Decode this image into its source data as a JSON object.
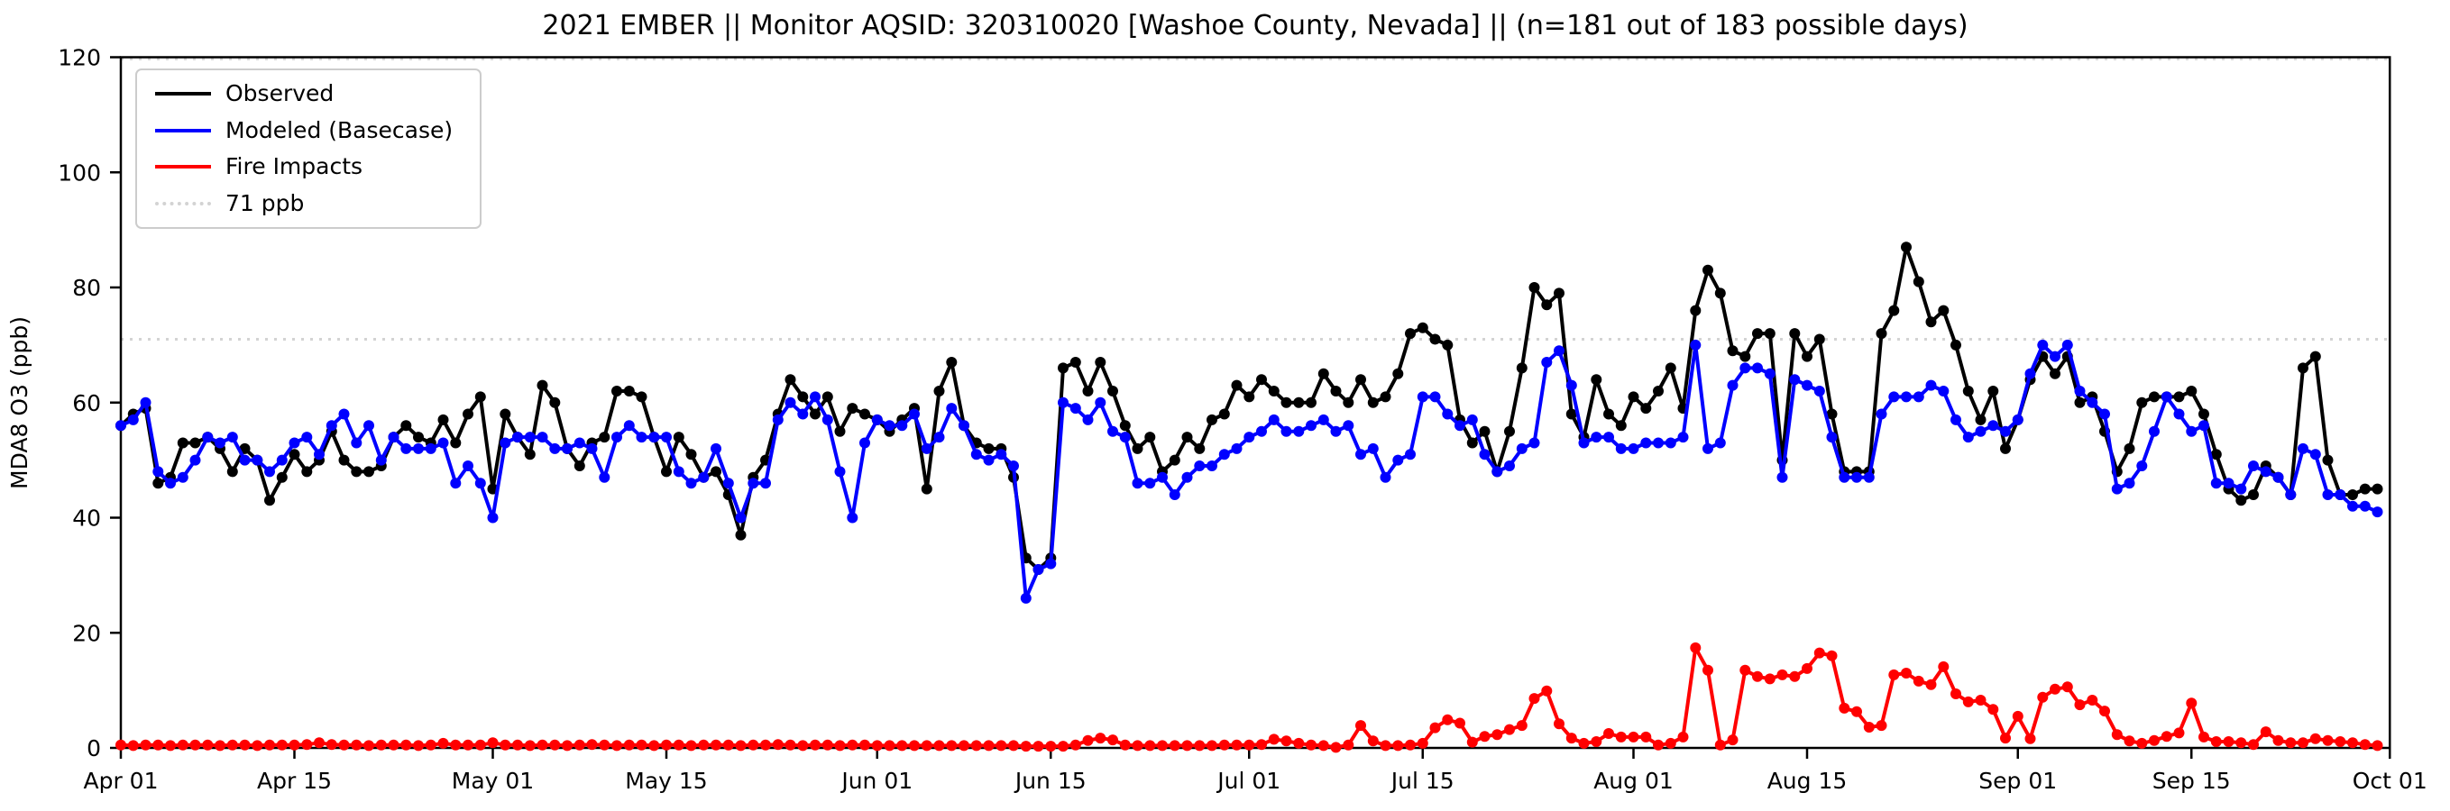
{
  "figure": {
    "title": "2021 EMBER || Monitor AQSID: 320310020 [Washoe County, Nevada] || (n=181 out of 183 possible days)"
  },
  "chart_data": {
    "type": "line",
    "title": "2021 EMBER || Monitor AQSID: 320310020 [Washoe County, Nevada] || (n=181 out of 183 possible days)",
    "xlabel": "",
    "ylabel": "MDA8 O3 (ppb)",
    "ylim": [
      0,
      120
    ],
    "yticks": [
      0,
      20,
      40,
      60,
      80,
      100,
      120
    ],
    "x_total_days": 183,
    "x_start": "Apr 01",
    "x_end": "Oct 01",
    "grid": false,
    "xticks": [
      {
        "label": "Apr 01",
        "day": 0
      },
      {
        "label": "Apr 15",
        "day": 14
      },
      {
        "label": "May 01",
        "day": 30
      },
      {
        "label": "May 15",
        "day": 44
      },
      {
        "label": "Jun 01",
        "day": 61
      },
      {
        "label": "Jun 15",
        "day": 75
      },
      {
        "label": "Jul 01",
        "day": 91
      },
      {
        "label": "Jul 15",
        "day": 105
      },
      {
        "label": "Aug 01",
        "day": 122
      },
      {
        "label": "Aug 15",
        "day": 136
      },
      {
        "label": "Sep 01",
        "day": 153
      },
      {
        "label": "Sep 15",
        "day": 167
      },
      {
        "label": "Oct 01",
        "day": 183
      }
    ],
    "ref_lines": [
      {
        "label": "71 ppb",
        "value": 71,
        "color": "#d3d3d3",
        "style": "dotted"
      },
      {
        "label": null,
        "value": 119.7,
        "color": "#d3d3d3",
        "style": "dotted"
      }
    ],
    "legend": {
      "position": "upper left",
      "entries": [
        "Observed",
        "Modeled (Basecase)",
        "Fire Impacts",
        "71 ppb"
      ]
    },
    "n_note": "n=181 out of 183 possible days",
    "series": [
      {
        "name": "Observed",
        "color": "#000000",
        "marker": "circle",
        "values": [
          56,
          58,
          59,
          46,
          47,
          53,
          53,
          54,
          52,
          48,
          52,
          50,
          43,
          47,
          51,
          48,
          50,
          55,
          50,
          48,
          48,
          49,
          54,
          56,
          54,
          53,
          57,
          53,
          58,
          61,
          45,
          58,
          54,
          51,
          63,
          60,
          52,
          49,
          53,
          54,
          62,
          62,
          61,
          54,
          48,
          54,
          51,
          47,
          48,
          44,
          37,
          47,
          50,
          58,
          64,
          61,
          58,
          61,
          55,
          59,
          58,
          57,
          55,
          57,
          59,
          45,
          62,
          67,
          56,
          53,
          52,
          52,
          47,
          33,
          31,
          33,
          66,
          67,
          62,
          67,
          62,
          56,
          52,
          54,
          48,
          50,
          54,
          52,
          57,
          58,
          63,
          61,
          64,
          62,
          60,
          60,
          60,
          65,
          62,
          60,
          64,
          60,
          61,
          65,
          72,
          73,
          71,
          70,
          57,
          53,
          55,
          48,
          55,
          66,
          80,
          77,
          79,
          58,
          54,
          64,
          58,
          56,
          61,
          59,
          62,
          66,
          59,
          76,
          83,
          79,
          69,
          68,
          72,
          72,
          50,
          72,
          68,
          71,
          58,
          48,
          48,
          48,
          72,
          76,
          87,
          81,
          74,
          76,
          70,
          62,
          57,
          62,
          52,
          57,
          64,
          68,
          65,
          68,
          60,
          61,
          55,
          48,
          52,
          60,
          61,
          61,
          61,
          62,
          58,
          51,
          45,
          43,
          44,
          49,
          47,
          44,
          66,
          68,
          50,
          44,
          44,
          45,
          45
        ]
      },
      {
        "name": "Modeled (Basecase)",
        "color": "#0000ff",
        "marker": "circle",
        "values": [
          56,
          57,
          60,
          48,
          46,
          47,
          50,
          54,
          53,
          54,
          50,
          50,
          48,
          50,
          53,
          54,
          51,
          56,
          58,
          53,
          56,
          50,
          54,
          52,
          52,
          52,
          53,
          46,
          49,
          46,
          40,
          53,
          54,
          54,
          54,
          52,
          52,
          53,
          52,
          47,
          54,
          56,
          54,
          54,
          54,
          48,
          46,
          47,
          52,
          46,
          40,
          46,
          46,
          57,
          60,
          58,
          61,
          57,
          48,
          40,
          53,
          57,
          56,
          56,
          58,
          52,
          54,
          59,
          56,
          51,
          50,
          51,
          49,
          26,
          31,
          32,
          60,
          59,
          57,
          60,
          55,
          54,
          46,
          46,
          47,
          44,
          47,
          49,
          49,
          51,
          52,
          54,
          55,
          57,
          55,
          55,
          56,
          57,
          55,
          56,
          51,
          52,
          47,
          50,
          51,
          61,
          61,
          58,
          56,
          57,
          51,
          48,
          49,
          52,
          53,
          67,
          69,
          63,
          53,
          54,
          54,
          52,
          52,
          53,
          53,
          53,
          54,
          70,
          52,
          53,
          63,
          66,
          66,
          65,
          47,
          64,
          63,
          62,
          54,
          47,
          47,
          47,
          58,
          61,
          61,
          61,
          63,
          62,
          57,
          54,
          55,
          56,
          55,
          57,
          65,
          70,
          68,
          70,
          62,
          60,
          58,
          45,
          46,
          49,
          55,
          61,
          58,
          55,
          56,
          46,
          46,
          45,
          49,
          48,
          47,
          44,
          52,
          51,
          44,
          44,
          42,
          42,
          41
        ]
      },
      {
        "name": "Fire Impacts",
        "color": "#ff0000",
        "marker": "circle",
        "values": [
          0.5,
          0.4,
          0.5,
          0.5,
          0.4,
          0.5,
          0.5,
          0.5,
          0.4,
          0.5,
          0.5,
          0.4,
          0.5,
          0.5,
          0.5,
          0.6,
          0.9,
          0.6,
          0.5,
          0.5,
          0.4,
          0.5,
          0.5,
          0.5,
          0.4,
          0.5,
          0.8,
          0.5,
          0.5,
          0.5,
          0.9,
          0.5,
          0.5,
          0.4,
          0.5,
          0.5,
          0.4,
          0.5,
          0.6,
          0.5,
          0.4,
          0.5,
          0.5,
          0.4,
          0.5,
          0.5,
          0.4,
          0.5,
          0.5,
          0.5,
          0.4,
          0.5,
          0.5,
          0.6,
          0.5,
          0.4,
          0.5,
          0.5,
          0.4,
          0.5,
          0.5,
          0.4,
          0.4,
          0.4,
          0.4,
          0.4,
          0.4,
          0.4,
          0.4,
          0.4,
          0.4,
          0.4,
          0.4,
          0.3,
          0.3,
          0.3,
          0.3,
          0.5,
          1.3,
          1.7,
          1.4,
          0.5,
          0.4,
          0.4,
          0.4,
          0.4,
          0.4,
          0.4,
          0.4,
          0.5,
          0.5,
          0.5,
          0.6,
          1.5,
          1.2,
          0.8,
          0.5,
          0.4,
          0.1,
          0.5,
          3.9,
          1.2,
          0.4,
          0.4,
          0.5,
          0.8,
          3.5,
          4.9,
          4.3,
          1.0,
          2.0,
          2.3,
          3.2,
          3.9,
          8.6,
          9.9,
          4.2,
          1.7,
          0.8,
          1.1,
          2.5,
          1.9,
          1.9,
          1.9,
          0.5,
          0.8,
          1.9,
          17.4,
          13.5,
          0.5,
          1.4,
          13.5,
          12.4,
          12.0,
          12.7,
          12.4,
          13.8,
          16.5,
          16.0,
          6.9,
          6.3,
          3.6,
          3.9,
          12.7,
          13.0,
          11.6,
          11.0,
          14.1,
          9.4,
          8.0,
          8.3,
          6.7,
          1.7,
          5.5,
          1.6,
          8.8,
          10.2,
          10.6,
          7.5,
          8.3,
          6.4,
          2.3,
          1.2,
          0.8,
          1.3,
          2.0,
          2.6,
          7.8,
          1.9,
          1.1,
          1.1,
          0.9,
          0.6,
          2.8,
          1.3,
          0.9,
          0.9,
          1.6,
          1.3,
          1.1,
          0.9,
          0.6,
          0.4
        ]
      }
    ]
  }
}
